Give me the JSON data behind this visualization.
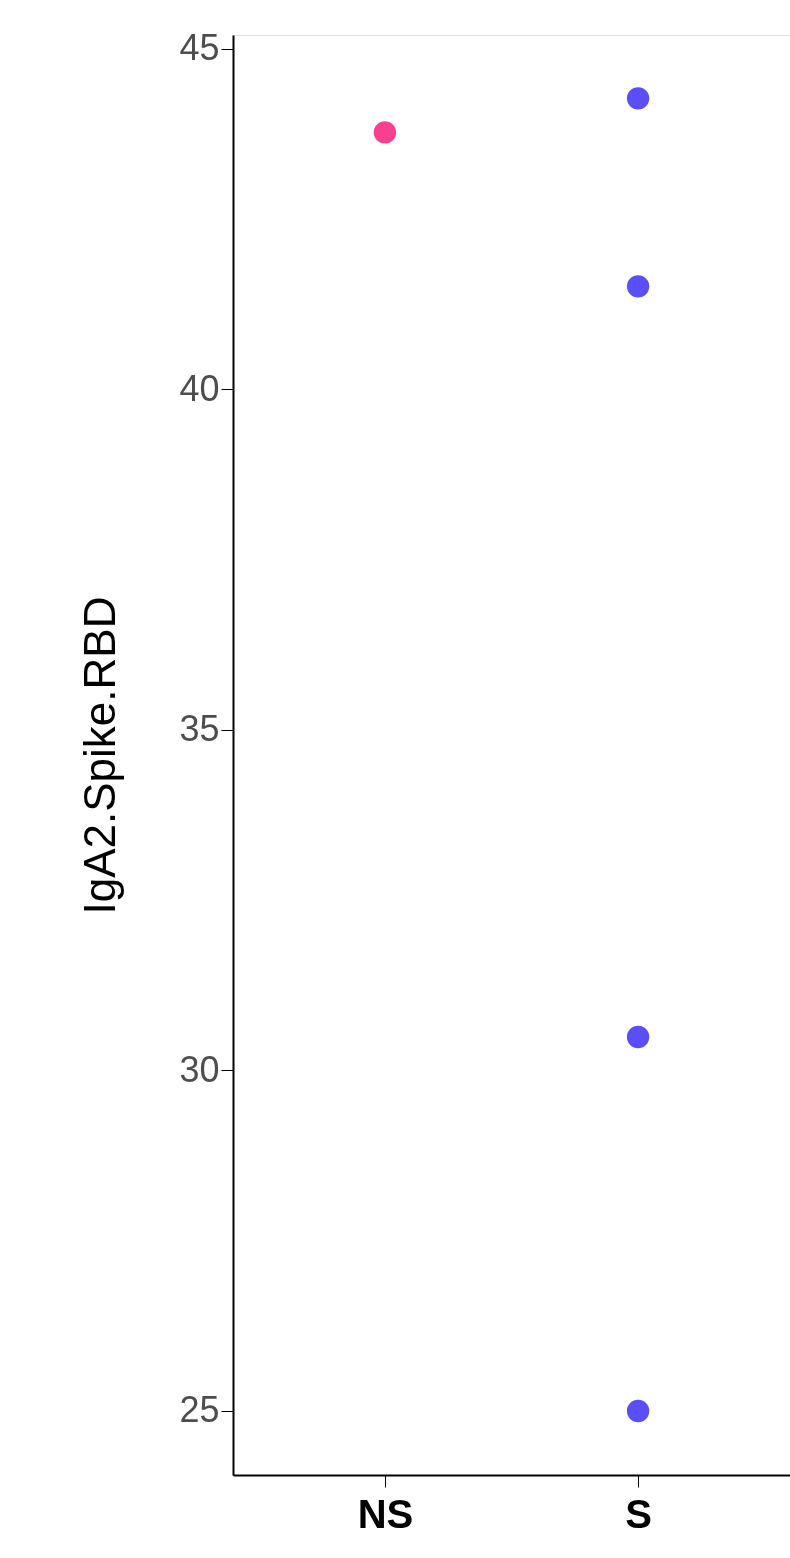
{
  "chart_data": {
    "type": "scatter",
    "ylabel": "IgA2.Spike.RBD",
    "categories": [
      "NS",
      "S"
    ],
    "series": [
      {
        "x": [
          "NS"
        ],
        "values": [
          43.77
        ],
        "color": "#f8408f"
      },
      {
        "x": [
          "S",
          "S",
          "S",
          "S"
        ],
        "values": [
          44.27,
          41.51,
          30.49,
          25.0
        ],
        "color": "#5a4ef8"
      }
    ],
    "ylim": [
      24.06,
      45.2
    ],
    "yticks": [
      25,
      30,
      35,
      40,
      45
    ],
    "grid": false,
    "legend": false,
    "marker": "circle"
  }
}
